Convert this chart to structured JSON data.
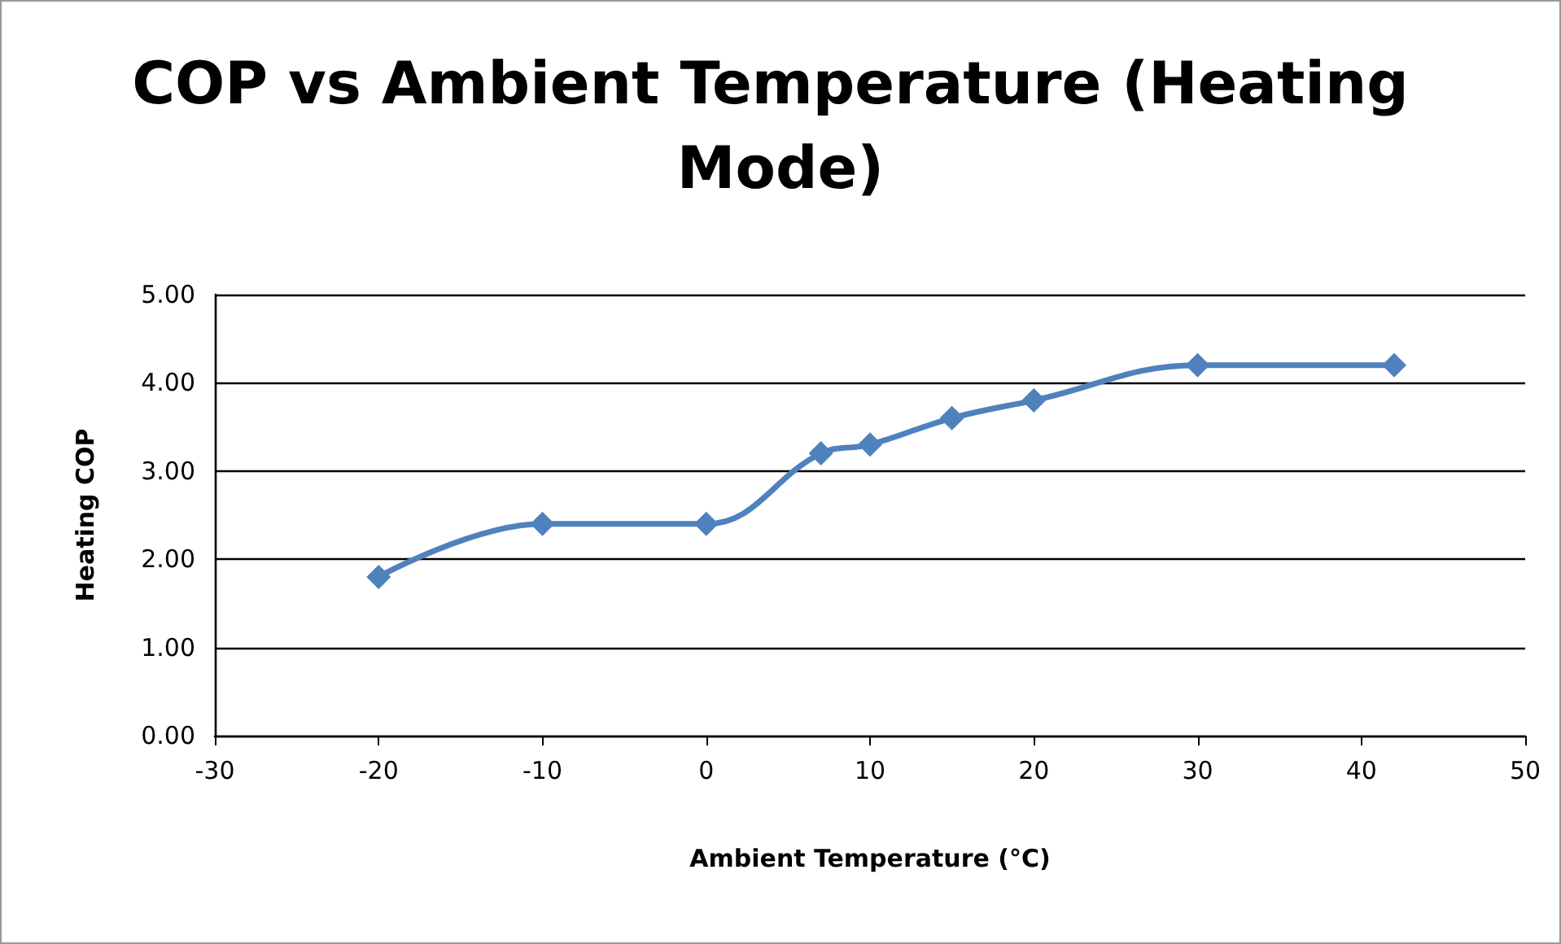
{
  "chart_data": {
    "type": "line",
    "title": "COP vs Ambient Temperature (Heating Mode)",
    "xlabel": "Ambient Temperature (°C)",
    "ylabel": "Heating COP",
    "x": [
      -20,
      -10,
      0,
      7,
      10,
      15,
      20,
      30,
      42
    ],
    "series": [
      {
        "color": "#4f81bd",
        "values": [
          1.8,
          2.4,
          2.4,
          3.2,
          3.3,
          3.6,
          3.8,
          4.2,
          4.2
        ]
      }
    ],
    "xlim": [
      -30,
      50
    ],
    "xticks": [
      -30,
      -20,
      -10,
      0,
      10,
      20,
      30,
      40,
      50
    ],
    "ylim": [
      0,
      5
    ],
    "yticks": [
      {
        "value": 0,
        "label": "0.00"
      },
      {
        "value": 1,
        "label": "1.00"
      },
      {
        "value": 2,
        "label": "2.00"
      },
      {
        "value": 3,
        "label": "3.00"
      },
      {
        "value": 4,
        "label": "4.00"
      },
      {
        "value": 5,
        "label": "5.00"
      }
    ],
    "grid": "y",
    "marker": "diamond",
    "line_style": "solid"
  }
}
